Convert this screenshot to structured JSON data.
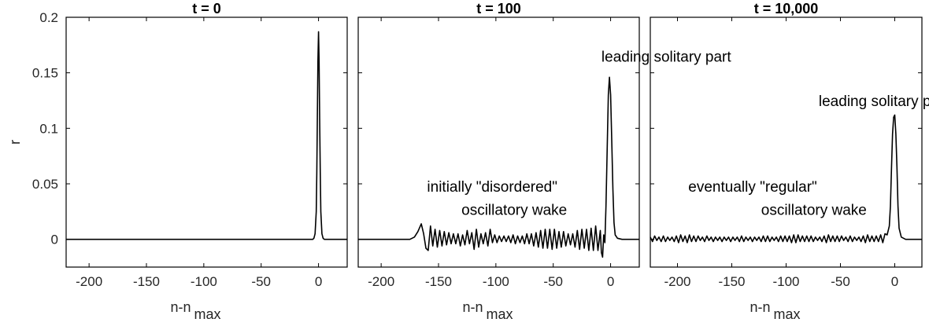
{
  "chart_data": [
    {
      "type": "line",
      "title": "t = 0",
      "xlabel": "n-n",
      "xlabel_sub": "max",
      "ylabel": "r",
      "xlim": [
        -220,
        25
      ],
      "ylim": [
        -0.025,
        0.2
      ],
      "xticks": [
        -200,
        -150,
        -100,
        -50,
        0
      ],
      "xtick_labels": [
        "-200",
        "-150",
        "-100",
        "-50",
        "0"
      ],
      "yticks": [
        0,
        0.05,
        0.1,
        0.15,
        0.2
      ],
      "ytick_labels": [
        "0",
        "0.05",
        "0.1",
        "0.15",
        "0.2"
      ],
      "series": [
        {
          "x": [
            -220,
            -5,
            -4,
            -3,
            -2,
            -1.5,
            -1,
            -0.5,
            0,
            0.5,
            1,
            1.5,
            2,
            3,
            4,
            5,
            25
          ],
          "y": [
            0,
            0,
            0.001,
            0.005,
            0.025,
            0.06,
            0.11,
            0.16,
            0.187,
            0.16,
            0.11,
            0.06,
            0.025,
            0.005,
            0.001,
            0,
            0
          ]
        }
      ],
      "annotations": []
    },
    {
      "type": "line",
      "title": "t = 100",
      "xlabel": "n-n",
      "xlabel_sub": "max",
      "xlim": [
        -220,
        25
      ],
      "ylim": [
        -0.025,
        0.2
      ],
      "xticks": [
        -200,
        -150,
        -100,
        -50,
        0
      ],
      "xtick_labels": [
        "-200",
        "-150",
        "-100",
        "-50",
        "0"
      ],
      "yticks": [
        0,
        0.05,
        0.1,
        0.15,
        0.2
      ],
      "series": [
        {
          "x": [
            -220,
            -175,
            -171,
            -168,
            -165,
            -163,
            -161,
            -159,
            -157,
            -155,
            -153,
            -151,
            -149,
            -147,
            -145,
            -143,
            -141,
            -139,
            -137,
            -135,
            -133,
            -131,
            -129,
            -127,
            -125,
            -123,
            -121,
            -119,
            -117,
            -115,
            -113,
            -111,
            -109,
            -107,
            -105,
            -103,
            -101,
            -99,
            -97,
            -95,
            -93,
            -91,
            -89,
            -87,
            -85,
            -83,
            -81,
            -79,
            -77,
            -75,
            -73,
            -71,
            -69,
            -67,
            -65,
            -63,
            -61,
            -59,
            -57,
            -55,
            -53,
            -51,
            -49,
            -47,
            -45,
            -43,
            -41,
            -39,
            -37,
            -35,
            -33,
            -31,
            -29,
            -27,
            -25,
            -23,
            -21,
            -19,
            -17,
            -15,
            -13,
            -11,
            -9,
            -8,
            -7,
            -6,
            -5,
            -4,
            -3,
            -2,
            -1,
            0,
            1,
            2,
            3,
            4,
            6,
            10,
            25
          ],
          "y": [
            0,
            0,
            0.002,
            0.007,
            0.014,
            0.005,
            -0.008,
            -0.01,
            0.012,
            -0.006,
            0.009,
            -0.007,
            0.008,
            -0.006,
            0.007,
            -0.005,
            0.006,
            -0.004,
            0.005,
            -0.004,
            0.005,
            -0.006,
            0.004,
            -0.005,
            0.008,
            -0.004,
            0.006,
            -0.009,
            0.009,
            -0.007,
            0.005,
            -0.004,
            0.006,
            -0.006,
            0.009,
            -0.003,
            0.004,
            -0.003,
            0.003,
            -0.002,
            0.003,
            -0.002,
            0.003,
            -0.003,
            0.004,
            -0.004,
            0.003,
            -0.003,
            0.003,
            -0.004,
            0.005,
            -0.004,
            0.005,
            -0.006,
            0.006,
            -0.007,
            0.008,
            -0.008,
            0.009,
            -0.008,
            0.009,
            -0.009,
            0.009,
            -0.008,
            0.007,
            -0.007,
            0.007,
            -0.006,
            0.005,
            -0.005,
            0.005,
            -0.007,
            0.008,
            -0.009,
            0.009,
            -0.008,
            0.009,
            -0.01,
            0.01,
            -0.01,
            0.012,
            -0.01,
            0.008,
            -0.012,
            -0.016,
            0.004,
            -0.003,
            0.03,
            0.08,
            0.13,
            0.146,
            0.13,
            0.09,
            0.045,
            0.015,
            0.004,
            0.001,
            0,
            0
          ]
        }
      ],
      "annotations": [
        {
          "text": "leading solitary part",
          "x": -8,
          "y": 0.16
        },
        {
          "text": "initially \"disordered\"",
          "x": -160,
          "y": 0.043
        },
        {
          "text": "oscillatory wake",
          "x": -130,
          "y": 0.022
        }
      ]
    },
    {
      "type": "line",
      "title": "t = 10,000",
      "xlabel": "n-n",
      "xlabel_sub": "max",
      "xlim": [
        -225,
        25
      ],
      "ylim": [
        -0.025,
        0.2
      ],
      "xticks": [
        -200,
        -150,
        -100,
        -50,
        0
      ],
      "xtick_labels": [
        "-200",
        "-150",
        "-100",
        "-50",
        "0"
      ],
      "yticks": [
        0,
        0.05,
        0.1,
        0.15,
        0.2
      ],
      "series": [
        {
          "x": [
            -225,
            -223,
            -221,
            -219,
            -217,
            -215,
            -213,
            -211,
            -209,
            -207,
            -205,
            -203,
            -201,
            -199,
            -197,
            -195,
            -193,
            -191,
            -189,
            -187,
            -185,
            -183,
            -181,
            -179,
            -177,
            -175,
            -173,
            -171,
            -169,
            -167,
            -165,
            -163,
            -161,
            -159,
            -157,
            -155,
            -153,
            -151,
            -149,
            -147,
            -145,
            -143,
            -141,
            -139,
            -137,
            -135,
            -133,
            -131,
            -129,
            -127,
            -125,
            -123,
            -121,
            -119,
            -117,
            -115,
            -113,
            -111,
            -109,
            -107,
            -105,
            -103,
            -101,
            -99,
            -97,
            -95,
            -93,
            -91,
            -89,
            -87,
            -85,
            -83,
            -81,
            -79,
            -77,
            -75,
            -73,
            -71,
            -69,
            -67,
            -65,
            -63,
            -61,
            -59,
            -57,
            -55,
            -53,
            -51,
            -49,
            -47,
            -45,
            -43,
            -41,
            -39,
            -37,
            -35,
            -33,
            -31,
            -29,
            -27,
            -25,
            -23,
            -21,
            -19,
            -17,
            -15,
            -13,
            -11,
            -9,
            -7,
            -6,
            -5,
            -4,
            -3,
            -2,
            -1,
            0,
            1,
            2,
            3,
            4,
            6,
            10,
            25
          ],
          "y": [
            0.002,
            -0.002,
            0.003,
            -0.001,
            0.002,
            -0.002,
            0.003,
            -0.002,
            0.002,
            -0.001,
            0.002,
            -0.002,
            0.003,
            -0.003,
            0.004,
            -0.002,
            0.003,
            -0.003,
            0.004,
            -0.002,
            0.003,
            -0.002,
            0.003,
            -0.001,
            0.002,
            -0.002,
            0.003,
            -0.001,
            0.002,
            -0.002,
            0.002,
            -0.001,
            0.002,
            -0.002,
            0.002,
            -0.001,
            0.002,
            -0.002,
            0.002,
            -0.001,
            0.002,
            -0.002,
            0.003,
            -0.002,
            0.002,
            -0.001,
            0.002,
            -0.002,
            0.002,
            -0.001,
            0.002,
            -0.002,
            0.003,
            -0.002,
            0.003,
            -0.002,
            0.002,
            -0.001,
            0.002,
            -0.002,
            0.003,
            -0.002,
            0.003,
            -0.002,
            0.003,
            -0.003,
            0.004,
            -0.003,
            0.004,
            -0.002,
            0.003,
            -0.002,
            0.003,
            -0.002,
            0.003,
            -0.002,
            0.002,
            -0.001,
            0.002,
            -0.002,
            0.003,
            -0.003,
            0.004,
            -0.002,
            0.003,
            -0.002,
            0.003,
            -0.002,
            0.003,
            -0.001,
            0.002,
            -0.002,
            0.003,
            -0.002,
            0.002,
            -0.001,
            0.002,
            -0.002,
            0.003,
            -0.003,
            0.004,
            -0.002,
            0.003,
            -0.002,
            0.003,
            -0.002,
            0.004,
            -0.003,
            0.005,
            0.004,
            0.008,
            0.012,
            0.03,
            0.065,
            0.095,
            0.11,
            0.112,
            0.095,
            0.065,
            0.03,
            0.01,
            0.002,
            0,
            0
          ]
        }
      ],
      "annotations": [
        {
          "text": "leading solitary part",
          "x": -70,
          "y": 0.12
        },
        {
          "text": "eventually \"regular\"",
          "x": -190,
          "y": 0.043
        },
        {
          "text": "oscillatory wake",
          "x": -123,
          "y": 0.022
        }
      ]
    }
  ]
}
